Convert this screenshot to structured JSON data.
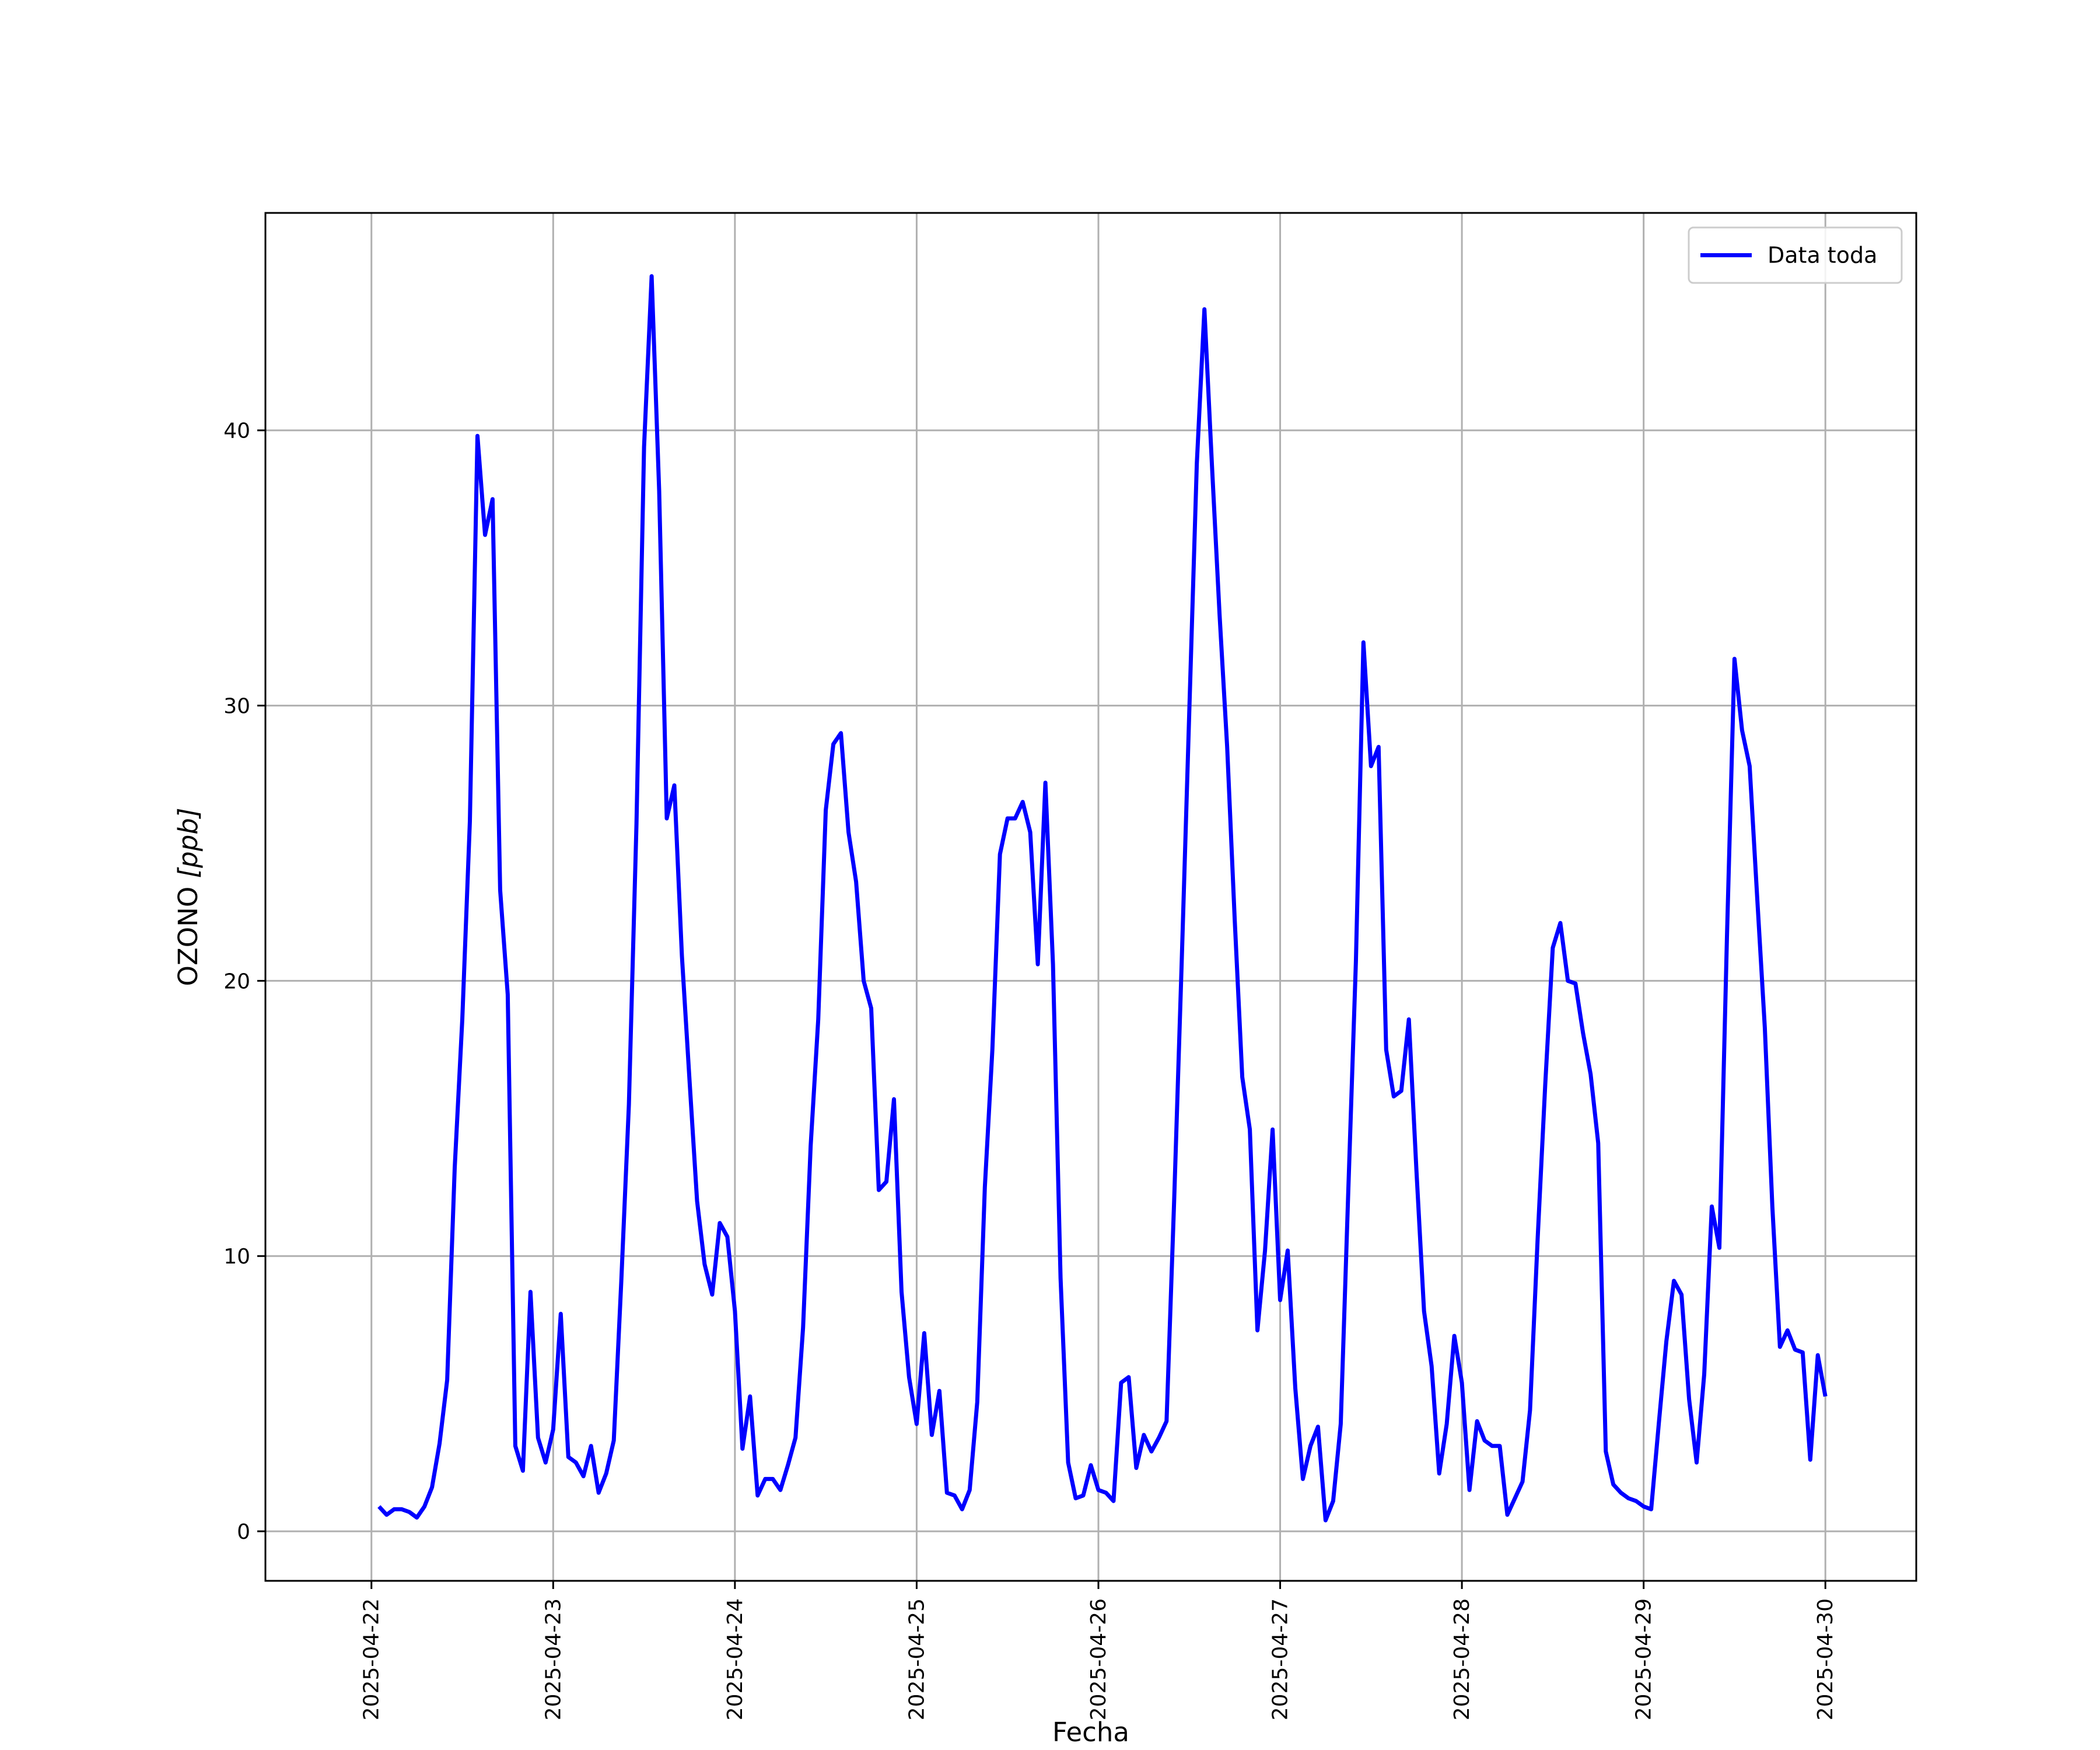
{
  "chart_data": {
    "type": "line",
    "title": "",
    "xlabel": "Fecha",
    "ylabel_main": "OZONO ",
    "ylabel_unit": "[ppb]",
    "x_ticks": [
      "2025-04-22",
      "2025-04-23",
      "2025-04-24",
      "2025-04-25",
      "2025-04-26",
      "2025-04-27",
      "2025-04-28",
      "2025-04-29",
      "2025-04-30"
    ],
    "y_ticks": [
      0,
      10,
      20,
      30,
      40
    ],
    "xlim": [
      "2025-04-21T10:00",
      "2025-04-30T12:00"
    ],
    "ylim": [
      -1.8,
      47.9
    ],
    "grid": true,
    "legend_position": "upper right",
    "colors": {
      "series": "#0000ff"
    },
    "series": [
      {
        "name": "Data toda",
        "x": [
          "2025-04-22T01:00",
          "2025-04-22T02:00",
          "2025-04-22T03:00",
          "2025-04-22T04:00",
          "2025-04-22T05:00",
          "2025-04-22T06:00",
          "2025-04-22T07:00",
          "2025-04-22T08:00",
          "2025-04-22T09:00",
          "2025-04-22T10:00",
          "2025-04-22T11:00",
          "2025-04-22T12:00",
          "2025-04-22T13:00",
          "2025-04-22T14:00",
          "2025-04-22T15:00",
          "2025-04-22T16:00",
          "2025-04-22T17:00",
          "2025-04-22T18:00",
          "2025-04-22T19:00",
          "2025-04-22T20:00",
          "2025-04-22T21:00",
          "2025-04-22T22:00",
          "2025-04-22T23:00",
          "2025-04-23T00:00",
          "2025-04-23T01:00",
          "2025-04-23T02:00",
          "2025-04-23T03:00",
          "2025-04-23T04:00",
          "2025-04-23T05:00",
          "2025-04-23T06:00",
          "2025-04-23T07:00",
          "2025-04-23T08:00",
          "2025-04-23T09:00",
          "2025-04-23T10:00",
          "2025-04-23T11:00",
          "2025-04-23T12:00",
          "2025-04-23T13:00",
          "2025-04-23T14:00",
          "2025-04-23T15:00",
          "2025-04-23T16:00",
          "2025-04-23T17:00",
          "2025-04-23T18:00",
          "2025-04-23T19:00",
          "2025-04-23T20:00",
          "2025-04-23T21:00",
          "2025-04-23T22:00",
          "2025-04-23T23:00",
          "2025-04-24T00:00",
          "2025-04-24T01:00",
          "2025-04-24T02:00",
          "2025-04-24T03:00",
          "2025-04-24T04:00",
          "2025-04-24T05:00",
          "2025-04-24T06:00",
          "2025-04-24T07:00",
          "2025-04-24T08:00",
          "2025-04-24T09:00",
          "2025-04-24T10:00",
          "2025-04-24T11:00",
          "2025-04-24T12:00",
          "2025-04-24T13:00",
          "2025-04-24T14:00",
          "2025-04-24T15:00",
          "2025-04-24T16:00",
          "2025-04-24T17:00",
          "2025-04-24T18:00",
          "2025-04-24T19:00",
          "2025-04-24T20:00",
          "2025-04-24T21:00",
          "2025-04-24T22:00",
          "2025-04-24T23:00",
          "2025-04-25T00:00",
          "2025-04-25T01:00",
          "2025-04-25T02:00",
          "2025-04-25T03:00",
          "2025-04-25T04:00",
          "2025-04-25T05:00",
          "2025-04-25T06:00",
          "2025-04-25T07:00",
          "2025-04-25T08:00",
          "2025-04-25T09:00",
          "2025-04-25T10:00",
          "2025-04-25T11:00",
          "2025-04-25T12:00",
          "2025-04-25T13:00",
          "2025-04-25T14:00",
          "2025-04-25T15:00",
          "2025-04-25T16:00",
          "2025-04-25T17:00",
          "2025-04-25T18:00",
          "2025-04-25T19:00",
          "2025-04-25T20:00",
          "2025-04-25T21:00",
          "2025-04-25T22:00",
          "2025-04-25T23:00",
          "2025-04-26T00:00",
          "2025-04-26T01:00",
          "2025-04-26T02:00",
          "2025-04-26T03:00",
          "2025-04-26T04:00",
          "2025-04-26T05:00",
          "2025-04-26T06:00",
          "2025-04-26T07:00",
          "2025-04-26T08:00",
          "2025-04-26T09:00",
          "2025-04-26T10:00",
          "2025-04-26T11:00",
          "2025-04-26T12:00",
          "2025-04-26T13:00",
          "2025-04-26T14:00",
          "2025-04-26T15:00",
          "2025-04-26T16:00",
          "2025-04-26T17:00",
          "2025-04-26T18:00",
          "2025-04-26T19:00",
          "2025-04-26T20:00",
          "2025-04-26T21:00",
          "2025-04-26T22:00",
          "2025-04-26T23:00",
          "2025-04-27T00:00",
          "2025-04-27T01:00",
          "2025-04-27T02:00",
          "2025-04-27T03:00",
          "2025-04-27T04:00",
          "2025-04-27T05:00",
          "2025-04-27T06:00",
          "2025-04-27T07:00",
          "2025-04-27T08:00",
          "2025-04-27T09:00",
          "2025-04-27T10:00",
          "2025-04-27T11:00",
          "2025-04-27T12:00",
          "2025-04-27T13:00",
          "2025-04-27T14:00",
          "2025-04-27T15:00",
          "2025-04-27T16:00",
          "2025-04-27T17:00",
          "2025-04-27T18:00",
          "2025-04-27T19:00",
          "2025-04-27T20:00",
          "2025-04-27T21:00",
          "2025-04-27T22:00",
          "2025-04-27T23:00",
          "2025-04-28T00:00",
          "2025-04-28T01:00",
          "2025-04-28T02:00",
          "2025-04-28T03:00",
          "2025-04-28T04:00",
          "2025-04-28T05:00",
          "2025-04-28T06:00",
          "2025-04-28T07:00",
          "2025-04-28T08:00",
          "2025-04-28T09:00",
          "2025-04-28T10:00",
          "2025-04-28T11:00",
          "2025-04-28T12:00",
          "2025-04-28T13:00",
          "2025-04-28T14:00",
          "2025-04-28T15:00",
          "2025-04-28T16:00",
          "2025-04-28T17:00",
          "2025-04-28T18:00",
          "2025-04-28T19:00",
          "2025-04-28T20:00",
          "2025-04-28T21:00",
          "2025-04-28T22:00",
          "2025-04-28T23:00",
          "2025-04-29T00:00",
          "2025-04-29T01:00",
          "2025-04-29T02:00",
          "2025-04-29T03:00",
          "2025-04-29T04:00",
          "2025-04-29T05:00",
          "2025-04-29T06:00",
          "2025-04-29T07:00",
          "2025-04-29T08:00",
          "2025-04-29T09:00",
          "2025-04-29T10:00",
          "2025-04-29T11:00",
          "2025-04-29T12:00",
          "2025-04-29T13:00",
          "2025-04-29T14:00",
          "2025-04-29T15:00",
          "2025-04-29T16:00",
          "2025-04-29T17:00",
          "2025-04-29T18:00",
          "2025-04-29T19:00",
          "2025-04-29T20:00",
          "2025-04-29T21:00",
          "2025-04-29T22:00",
          "2025-04-29T23:00",
          "2025-04-30T00:00"
        ],
        "values": [
          0.9,
          0.6,
          0.8,
          0.8,
          0.7,
          0.5,
          0.9,
          1.6,
          3.2,
          5.5,
          13.2,
          18.6,
          25.8,
          39.8,
          36.2,
          37.5,
          23.3,
          19.5,
          3.1,
          2.2,
          8.7,
          3.4,
          2.5,
          3.7,
          7.9,
          2.7,
          2.5,
          2.0,
          3.1,
          1.4,
          2.1,
          3.3,
          9.1,
          15.5,
          25.7,
          39.4,
          45.6,
          37.8,
          25.9,
          27.1,
          20.9,
          16.4,
          12.0,
          9.7,
          8.6,
          11.2,
          10.7,
          8.0,
          3.0,
          4.9,
          1.3,
          1.9,
          1.9,
          1.5,
          2.4,
          3.4,
          7.4,
          14.0,
          18.6,
          26.2,
          28.6,
          29.0,
          25.4,
          23.6,
          20.0,
          19.0,
          12.4,
          12.7,
          15.7,
          8.7,
          5.6,
          3.9,
          7.2,
          3.5,
          5.1,
          1.4,
          1.3,
          0.8,
          1.5,
          4.7,
          12.5,
          17.5,
          24.6,
          25.9,
          25.9,
          26.5,
          25.4,
          20.6,
          27.2,
          20.6,
          9.2,
          2.5,
          1.2,
          1.3,
          2.4,
          1.5,
          1.4,
          1.1,
          5.4,
          5.6,
          2.3,
          3.5,
          2.9,
          3.4,
          4.0,
          12.0,
          20.7,
          29.8,
          38.8,
          44.4,
          38.7,
          33.3,
          28.5,
          22.2,
          16.5,
          14.6,
          7.3,
          10.2,
          14.6,
          8.4,
          10.2,
          5.2,
          1.9,
          3.1,
          3.8,
          0.4,
          1.1,
          3.9,
          12.4,
          20.7,
          32.3,
          27.8,
          28.5,
          17.5,
          15.8,
          16.0,
          18.6,
          13.1,
          8.0,
          6.0,
          2.1,
          3.9,
          7.1,
          5.4,
          1.5,
          4.0,
          3.3,
          3.1,
          3.1,
          0.6,
          1.2,
          1.8,
          4.4,
          10.6,
          16.2,
          21.2,
          22.1,
          20.0,
          19.9,
          18.1,
          16.6,
          14.1,
          2.9,
          1.7,
          1.4,
          1.2,
          1.1,
          0.9,
          0.8,
          3.9,
          6.9,
          9.1,
          8.6,
          4.8,
          2.5,
          5.7,
          11.8,
          10.3,
          21.6,
          31.7,
          29.1,
          27.8,
          23.0,
          18.3,
          11.8,
          6.7,
          7.3,
          6.6,
          6.5,
          2.6,
          6.4,
          4.9
        ]
      }
    ]
  }
}
